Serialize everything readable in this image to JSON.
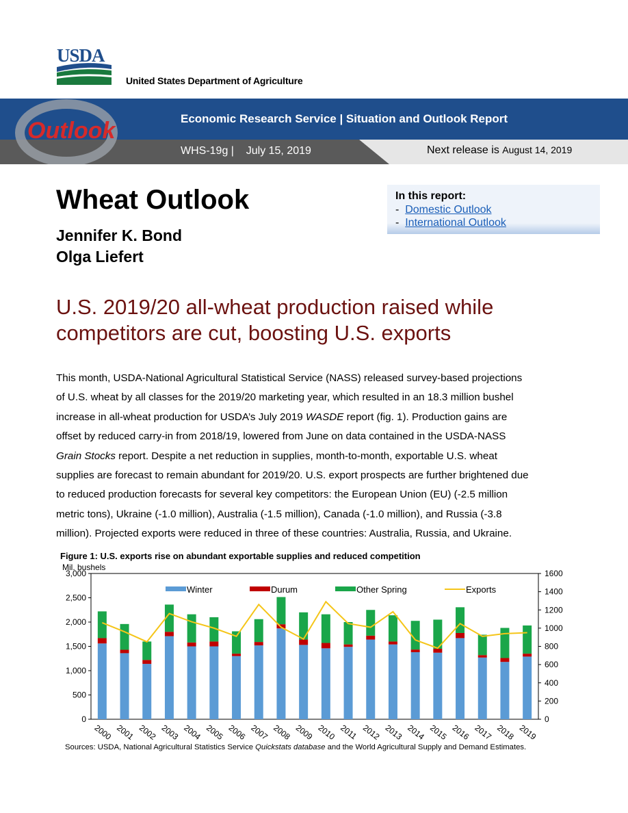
{
  "header": {
    "agency_logo": "USDA",
    "department": "United States Department of Agriculture",
    "banner_title": "Economic Research Service | Situation and Outlook Report",
    "banner_logo_text": "Outlook",
    "report_id": "WHS-19g |    July 15, 2019",
    "next_release_label": "Next release is",
    "next_release_date": "August 14, 2019"
  },
  "title": "Wheat Outlook",
  "authors": [
    "Jennifer K. Bond",
    "Olga Liefert"
  ],
  "in_this_report": {
    "heading": "In this report:",
    "links": [
      "Domestic Outlook",
      "International Outlook"
    ]
  },
  "headline": "U.S. 2019/20 all-wheat production raised while competitors are cut, boosting U.S. exports",
  "body_lines": [
    "This month, USDA-National Agricultural Statistical Service (NASS) released survey-based projections",
    "of U.S. wheat by all classes for the 2019/20 marketing year, which resulted in an 18.3 million bushel",
    "increase in all-wheat production for USDA’s July 2019 ",
    "WASDE",
    " report (fig. 1). Production gains are",
    "offset by reduced carry-in from 2018/19, lowered from June on data contained in the USDA-NASS",
    "Grain Stocks",
    " report. Despite a net reduction in supplies, month-to-month, exportable U.S. wheat",
    "supplies are forecast to remain abundant for 2019/20. U.S. export prospects are further brightened due",
    "to reduced production forecasts for several key competitors: the European Union (EU) (-2.5 million",
    "metric tons), Ukraine (-1.0 million), Australia (-1.5 million), Canada (-1.0 million), and Russia (-3.8",
    "million). Projected exports were reduced in three of these countries: Australia, Russia, and Ukraine."
  ],
  "figure": {
    "title": "Figure 1: U.S. exports rise on abundant exportable supplies and reduced competition",
    "y_unit": "Mil. bushels",
    "source_prefix": "Sources:  USDA, National Agricultural Statistics Service ",
    "source_italic": "Quickstats database",
    "source_suffix": " and the World Agricultural Supply and Demand Estimates."
  },
  "chart_data": {
    "type": "bar",
    "stacked": true,
    "categories": [
      "2000",
      "2001",
      "2002",
      "2003",
      "2004",
      "2005",
      "2006",
      "2007",
      "2008",
      "2009",
      "2010",
      "2011",
      "2012",
      "2013",
      "2014",
      "2015",
      "2016",
      "2017",
      "2018",
      "2019"
    ],
    "series": [
      {
        "name": "Winter",
        "axis": "left",
        "color": "#5b9bd5",
        "values": [
          1560,
          1360,
          1140,
          1710,
          1500,
          1500,
          1300,
          1520,
          1870,
          1530,
          1460,
          1490,
          1640,
          1540,
          1380,
          1370,
          1670,
          1270,
          1180,
          1290
        ]
      },
      {
        "name": "Durum",
        "axis": "left",
        "color": "#c00000",
        "values": [
          110,
          70,
          80,
          90,
          80,
          100,
          50,
          70,
          85,
          110,
          110,
          50,
          80,
          60,
          55,
          80,
          105,
          50,
          80,
          60
        ]
      },
      {
        "name": "Other Spring",
        "axis": "left",
        "color": "#1aa64a",
        "values": [
          550,
          530,
          380,
          560,
          580,
          500,
          460,
          470,
          560,
          560,
          590,
          460,
          530,
          540,
          590,
          600,
          530,
          420,
          620,
          580
        ]
      },
      {
        "name": "Exports",
        "type": "line",
        "axis": "right",
        "color": "#f5c518",
        "values": [
          1060,
          960,
          850,
          1160,
          1070,
          1000,
          910,
          1260,
          1010,
          880,
          1290,
          1050,
          1010,
          1180,
          870,
          780,
          1050,
          910,
          940,
          950
        ]
      }
    ],
    "y_left": {
      "label": "Mil. bushels",
      "ylim": [
        0,
        3000
      ],
      "ticks": [
        "0",
        "500",
        "1,000",
        "1,500",
        "2,000",
        "2,500",
        "3,000"
      ]
    },
    "y_right": {
      "ylim": [
        0,
        1600
      ],
      "ticks": [
        "0",
        "200",
        "400",
        "600",
        "800",
        "1000",
        "1200",
        "1400",
        "1600"
      ]
    },
    "legend_placement": "top",
    "grid": false
  }
}
